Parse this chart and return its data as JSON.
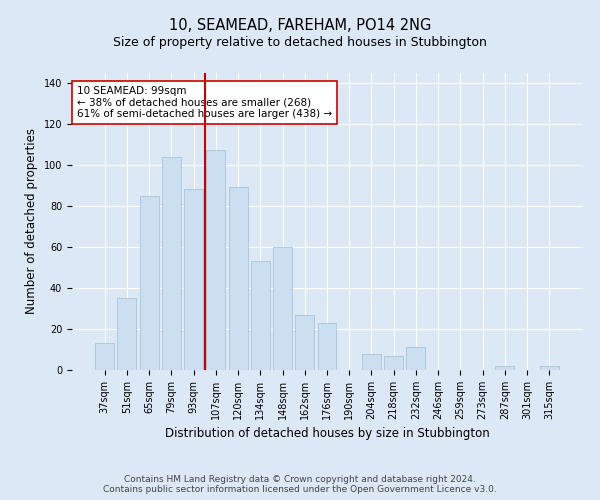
{
  "title": "10, SEAMEAD, FAREHAM, PO14 2NG",
  "subtitle": "Size of property relative to detached houses in Stubbington",
  "xlabel": "Distribution of detached houses by size in Stubbington",
  "ylabel": "Number of detached properties",
  "categories": [
    "37sqm",
    "51sqm",
    "65sqm",
    "79sqm",
    "93sqm",
    "107sqm",
    "120sqm",
    "134sqm",
    "148sqm",
    "162sqm",
    "176sqm",
    "190sqm",
    "204sqm",
    "218sqm",
    "232sqm",
    "246sqm",
    "259sqm",
    "273sqm",
    "287sqm",
    "301sqm",
    "315sqm"
  ],
  "values": [
    13,
    35,
    85,
    104,
    88,
    107,
    89,
    53,
    60,
    27,
    23,
    0,
    8,
    7,
    11,
    0,
    0,
    0,
    2,
    0,
    2
  ],
  "bar_color": "#ccdff0",
  "bar_edge_color": "#a0bfd8",
  "vline_color": "#cc0000",
  "vline_x": 4.5,
  "annotation_text": "10 SEAMEAD: 99sqm\n← 38% of detached houses are smaller (268)\n61% of semi-detached houses are larger (438) →",
  "annotation_box_color": "#ffffff",
  "annotation_box_edge_color": "#cc0000",
  "ylim": [
    0,
    145
  ],
  "yticks": [
    0,
    20,
    40,
    60,
    80,
    100,
    120,
    140
  ],
  "background_color": "#dce8f5",
  "plot_bg_color": "#dce8f5",
  "grid_color": "#ffffff",
  "footer_text": "Contains HM Land Registry data © Crown copyright and database right 2024.\nContains public sector information licensed under the Open Government Licence v3.0.",
  "title_fontsize": 10.5,
  "subtitle_fontsize": 9,
  "xlabel_fontsize": 8.5,
  "ylabel_fontsize": 8.5,
  "tick_fontsize": 7,
  "footer_fontsize": 6.5,
  "annotation_fontsize": 7.5
}
